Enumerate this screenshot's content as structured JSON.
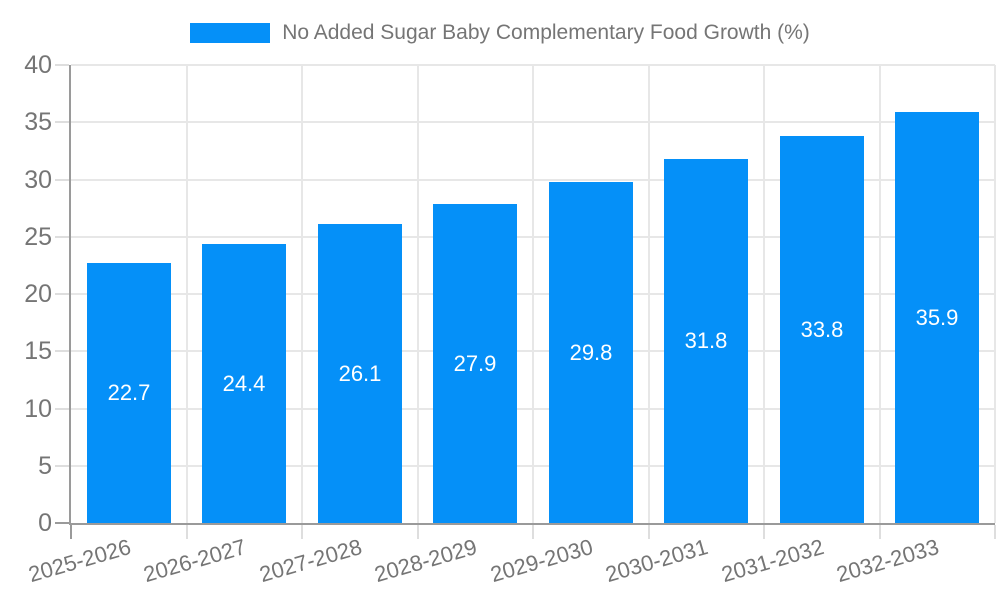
{
  "legend": {
    "label": "No Added Sugar Baby Complementary Food Growth (%)"
  },
  "chart_data": {
    "type": "bar",
    "title": "No Added Sugar Baby Complementary Food Growth (%)",
    "categories": [
      "2025-2026",
      "2026-2027",
      "2027-2028",
      "2028-2029",
      "2029-2030",
      "2030-2031",
      "2031-2032",
      "2032-2033"
    ],
    "values": [
      22.7,
      24.4,
      26.1,
      27.9,
      29.8,
      31.8,
      33.8,
      35.9
    ],
    "bar_labels": [
      "22.7",
      "24.4",
      "26.1",
      "27.9",
      "29.8",
      "31.8",
      "33.8",
      "35.9"
    ],
    "xlabel": "",
    "ylabel": "",
    "ylim": [
      0,
      40
    ],
    "yticks": [
      0,
      5,
      10,
      15,
      20,
      25,
      30,
      35,
      40
    ],
    "grid": true,
    "legend_position": "top",
    "colors": {
      "bar": "#0590f8",
      "bar_label": "#ffffff",
      "axis": "#9a9a9a",
      "grid": "#e7e7e7",
      "tick_label": "#757575",
      "legend_text": "#757575"
    }
  }
}
